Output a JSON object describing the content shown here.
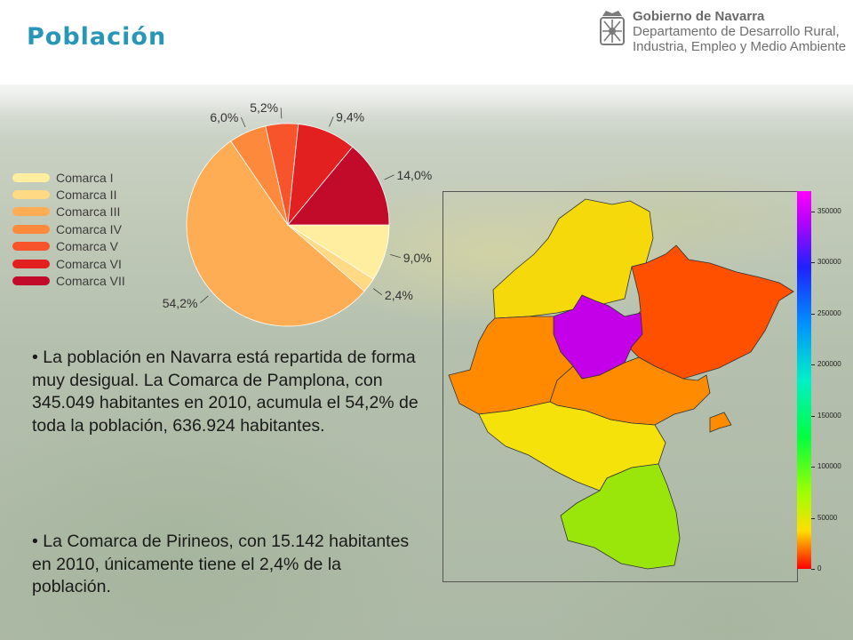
{
  "page": {
    "title": "Población",
    "logo": {
      "line1": "Gobierno de Navarra",
      "line2": "Departamento de Desarrollo Rural,",
      "line3": "Industria, Empleo y Medio Ambiente"
    },
    "paragraph1": "• La población en Navarra está repartida de forma muy desigual. La Comarca de Pamplona, con 345.049 habitantes en 2010, acumula el 54,2% de toda la población, 636.924 habitantes.",
    "paragraph2": "• La Comarca de Pirineos, con 15.142 habitantes en 2010, únicamente tiene el 2,4% de la población."
  },
  "chart_data": [
    {
      "type": "pie",
      "categories": [
        "Comarca I",
        "Comarca II",
        "Comarca III",
        "Comarca IV",
        "Comarca V",
        "Comarca VI",
        "Comarca VII"
      ],
      "values": [
        9.0,
        2.4,
        54.2,
        6.0,
        5.2,
        9.4,
        14.0
      ],
      "value_labels": [
        "9,0%",
        "2,4%",
        "54,2%",
        "6,0%",
        "5,2%",
        "9,4%",
        "14,0%"
      ],
      "colors": [
        "#ffeea0",
        "#ffd983",
        "#ffad55",
        "#fd8a3c",
        "#f8542c",
        "#e32020",
        "#c20b2b"
      ],
      "legend_position": "left",
      "title": "",
      "xlabel": "",
      "ylabel": ""
    },
    {
      "type": "heatmap",
      "description": "choropleth map of Navarra comarcas",
      "regions": [
        {
          "name": "Comarca I",
          "population": 57000,
          "color": "#f5d90a"
        },
        {
          "name": "Comarca II",
          "population": 15142,
          "color": "#ff5000"
        },
        {
          "name": "Comarca III",
          "population": 345049,
          "color": "#c300e8"
        },
        {
          "name": "Comarca IV",
          "population": 38000,
          "color": "#ff8a00"
        },
        {
          "name": "Comarca V",
          "population": 33000,
          "color": "#ff9a00"
        },
        {
          "name": "Comarca VI",
          "population": 60000,
          "color": "#f5e20a"
        },
        {
          "name": "Comarca VII",
          "population": 89000,
          "color": "#9be60a"
        }
      ],
      "colorbar": {
        "range": [
          0,
          370000
        ],
        "ticks": [
          0,
          50000,
          100000,
          150000,
          200000,
          250000,
          300000,
          350000
        ],
        "tick_labels": [
          "0",
          "50000",
          "100000",
          "150000",
          "200000",
          "250000",
          "300000",
          "350000"
        ]
      }
    }
  ]
}
